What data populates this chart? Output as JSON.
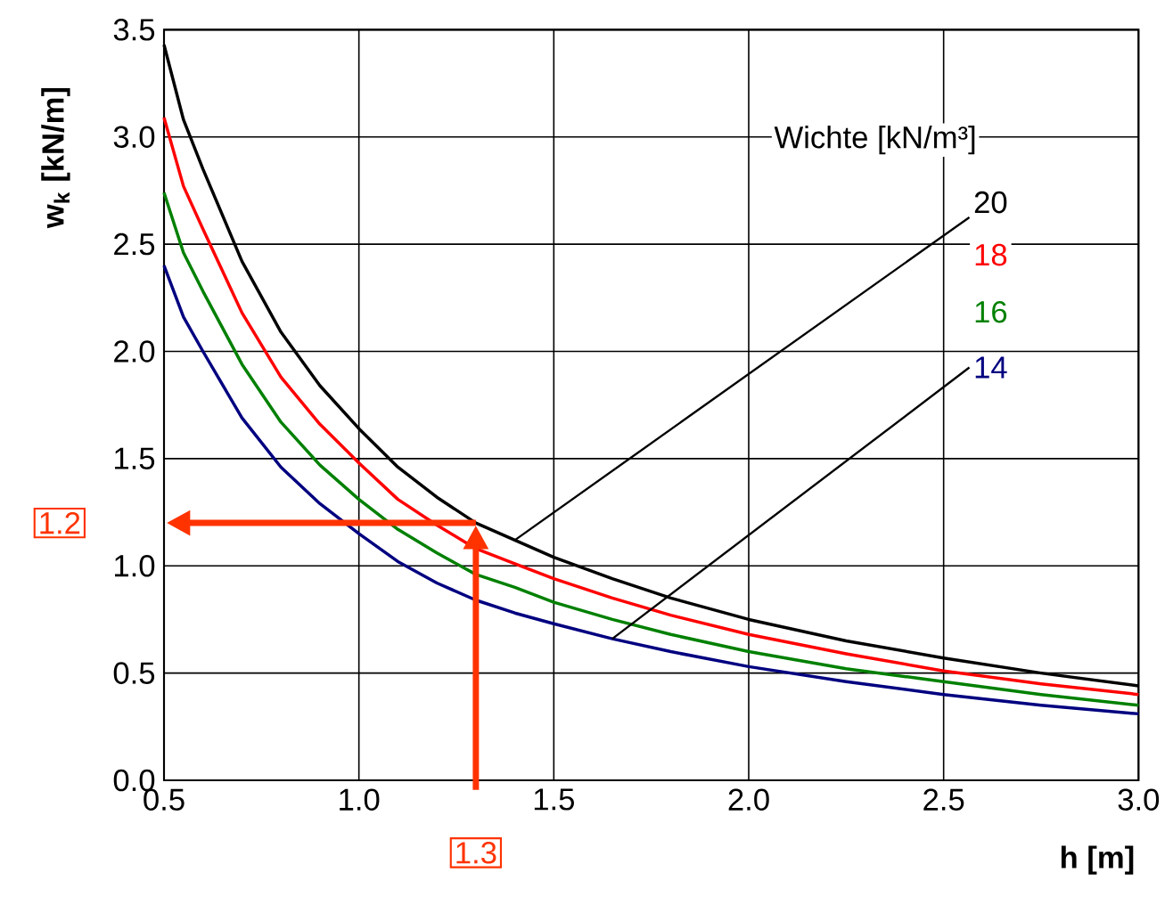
{
  "chart_data": {
    "type": "line",
    "xlabel": "h [m]",
    "ylabel": "w$_{k}$ [kN/m]",
    "legend_title": "Wichte [kN/m³]",
    "x": [
      0.5,
      0.55,
      0.6,
      0.7,
      0.8,
      0.9,
      1.0,
      1.1,
      1.2,
      1.3,
      1.4,
      1.5,
      1.65,
      1.8,
      2.0,
      2.25,
      2.5,
      2.75,
      3.0
    ],
    "series": [
      {
        "name": "20",
        "color": "#000000",
        "values": [
          3.43,
          3.08,
          2.85,
          2.42,
          2.09,
          1.84,
          1.64,
          1.46,
          1.32,
          1.2,
          1.12,
          1.04,
          0.94,
          0.85,
          0.75,
          0.65,
          0.57,
          0.5,
          0.44
        ]
      },
      {
        "name": "18",
        "color": "#ff0000",
        "values": [
          3.09,
          2.77,
          2.57,
          2.18,
          1.88,
          1.66,
          1.48,
          1.31,
          1.19,
          1.08,
          1.01,
          0.94,
          0.85,
          0.77,
          0.68,
          0.59,
          0.51,
          0.45,
          0.4
        ]
      },
      {
        "name": "16",
        "color": "#008000",
        "values": [
          2.74,
          2.46,
          2.28,
          1.94,
          1.67,
          1.47,
          1.31,
          1.17,
          1.06,
          0.96,
          0.9,
          0.83,
          0.75,
          0.68,
          0.6,
          0.52,
          0.46,
          0.4,
          0.35
        ]
      },
      {
        "name": "14",
        "color": "#000080",
        "values": [
          2.4,
          2.16,
          2.0,
          1.69,
          1.46,
          1.29,
          1.15,
          1.02,
          0.92,
          0.84,
          0.78,
          0.73,
          0.66,
          0.6,
          0.53,
          0.46,
          0.4,
          0.35,
          0.31
        ]
      }
    ],
    "xlim": [
      0.5,
      3.0
    ],
    "ylim": [
      0.0,
      3.5
    ],
    "xticks": [
      {
        "value": 0.5,
        "label": "0.5"
      },
      {
        "value": 1.0,
        "label": "1.0"
      },
      {
        "value": 1.5,
        "label": "1.5"
      },
      {
        "value": 2.0,
        "label": "2.0"
      },
      {
        "value": 2.5,
        "label": "2.5"
      },
      {
        "value": 3.0,
        "label": "3.0"
      }
    ],
    "yticks": [
      {
        "value": 0.0,
        "label": "0.0"
      },
      {
        "value": 0.5,
        "label": "0.5"
      },
      {
        "value": 1.0,
        "label": "1.0"
      },
      {
        "value": 1.5,
        "label": "1.5"
      },
      {
        "value": 2.0,
        "label": "2.0"
      },
      {
        "value": 2.5,
        "label": "2.5"
      },
      {
        "value": 3.0,
        "label": "3.0"
      },
      {
        "value": 3.5,
        "label": "3.5"
      }
    ],
    "grid": true,
    "legend": "top right",
    "marker": "none",
    "line_style": "solid",
    "annotations": [
      "1.2",
      "1.3"
    ]
  }
}
